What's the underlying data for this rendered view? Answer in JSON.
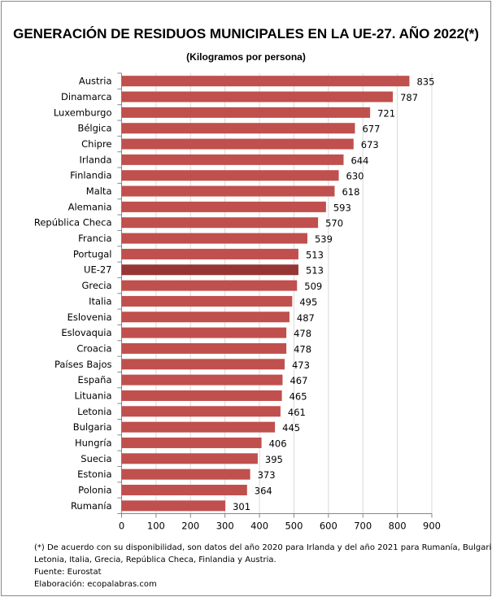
{
  "chart_data": {
    "type": "bar",
    "orientation": "horizontal",
    "title": "GENERACIÓN DE RESIDUOS MUNICIPALES EN LA UE-27. AÑO 2022(*)",
    "subtitle": "(Kilogramos por persona)",
    "categories": [
      "Austria",
      "Dinamarca",
      "Luxemburgo",
      "Bélgica",
      "Chipre",
      "Irlanda",
      "Finlandia",
      "Malta",
      "Alemania",
      "República Checa",
      "Francia",
      "Portugal",
      "UE-27",
      "Grecia",
      "Italia",
      "Eslovenia",
      "Eslovaquia",
      "Croacia",
      "Países Bajos",
      "España",
      "Lituania",
      "Letonia",
      "Bulgaria",
      "Hungría",
      "Suecia",
      "Estonia",
      "Polonia",
      "Rumanía"
    ],
    "values": [
      835,
      787,
      721,
      677,
      673,
      644,
      630,
      618,
      593,
      570,
      539,
      513,
      513,
      509,
      495,
      487,
      478,
      478,
      473,
      467,
      465,
      461,
      445,
      406,
      395,
      373,
      364,
      301
    ],
    "highlight": "UE-27",
    "xlim": [
      0,
      900
    ],
    "xticks": [
      0,
      100,
      200,
      300,
      400,
      500,
      600,
      700,
      800,
      900
    ],
    "grid": "vertical",
    "data_labels": true,
    "colors": {
      "bar": "#C0504D",
      "highlight": "#963634",
      "grid": "#D9D9D9"
    }
  },
  "notes": {
    "footnote_line1": "(*) De acuerdo con su disponibilidad, son datos del año 2020 para Irlanda y del año 2021 para Rumanía, Bulgaria,",
    "footnote_line2": "Letonia, Italia, Grecia, República Checa, Finlandia y Austria.",
    "source": "Fuente: Eurostat",
    "credit": "Elaboración: ecopalabras.com"
  }
}
